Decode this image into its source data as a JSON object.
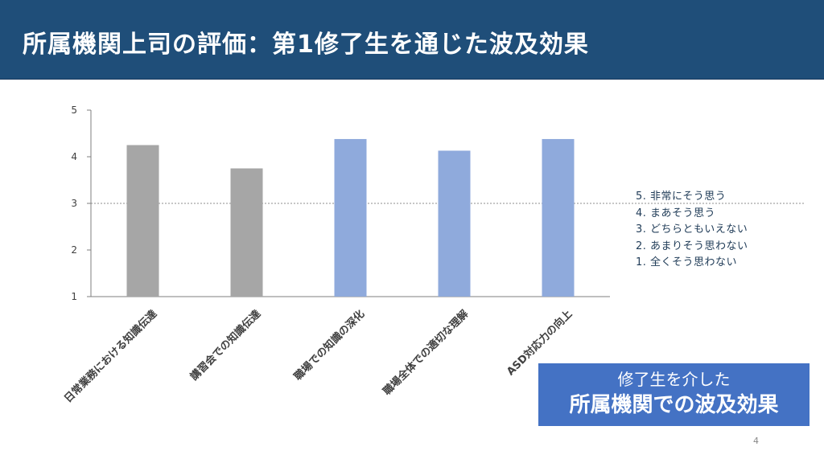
{
  "slide": {
    "title": "所属機関上司の評価：第1修了生を通じた波及効果",
    "page_number": "4"
  },
  "legend": {
    "items": [
      "5. 非常にそう思う",
      "4. まあそう思う",
      "3. どちらともいえない",
      "2. あまりそう思わない",
      "1. 全くそう思わない"
    ]
  },
  "callout": {
    "line1": "修了生を介した",
    "line2": "所属機関での波及効果"
  },
  "chart_data": {
    "type": "bar",
    "categories": [
      "日常業務における知識伝達",
      "講習会での知識伝達",
      "職場での知識の深化",
      "職場全体での適切な理解",
      "ASD対応力の向上"
    ],
    "values": [
      4.25,
      3.75,
      4.38,
      4.13,
      4.38
    ],
    "bar_colors": [
      "#a6a6a6",
      "#a6a6a6",
      "#8faadc",
      "#8faadc",
      "#8faadc"
    ],
    "ylim": [
      1,
      5
    ],
    "yticks": [
      1,
      2,
      3,
      4,
      5
    ],
    "reference_line": 3,
    "title": "",
    "xlabel": "",
    "ylabel": "",
    "grid": false
  }
}
